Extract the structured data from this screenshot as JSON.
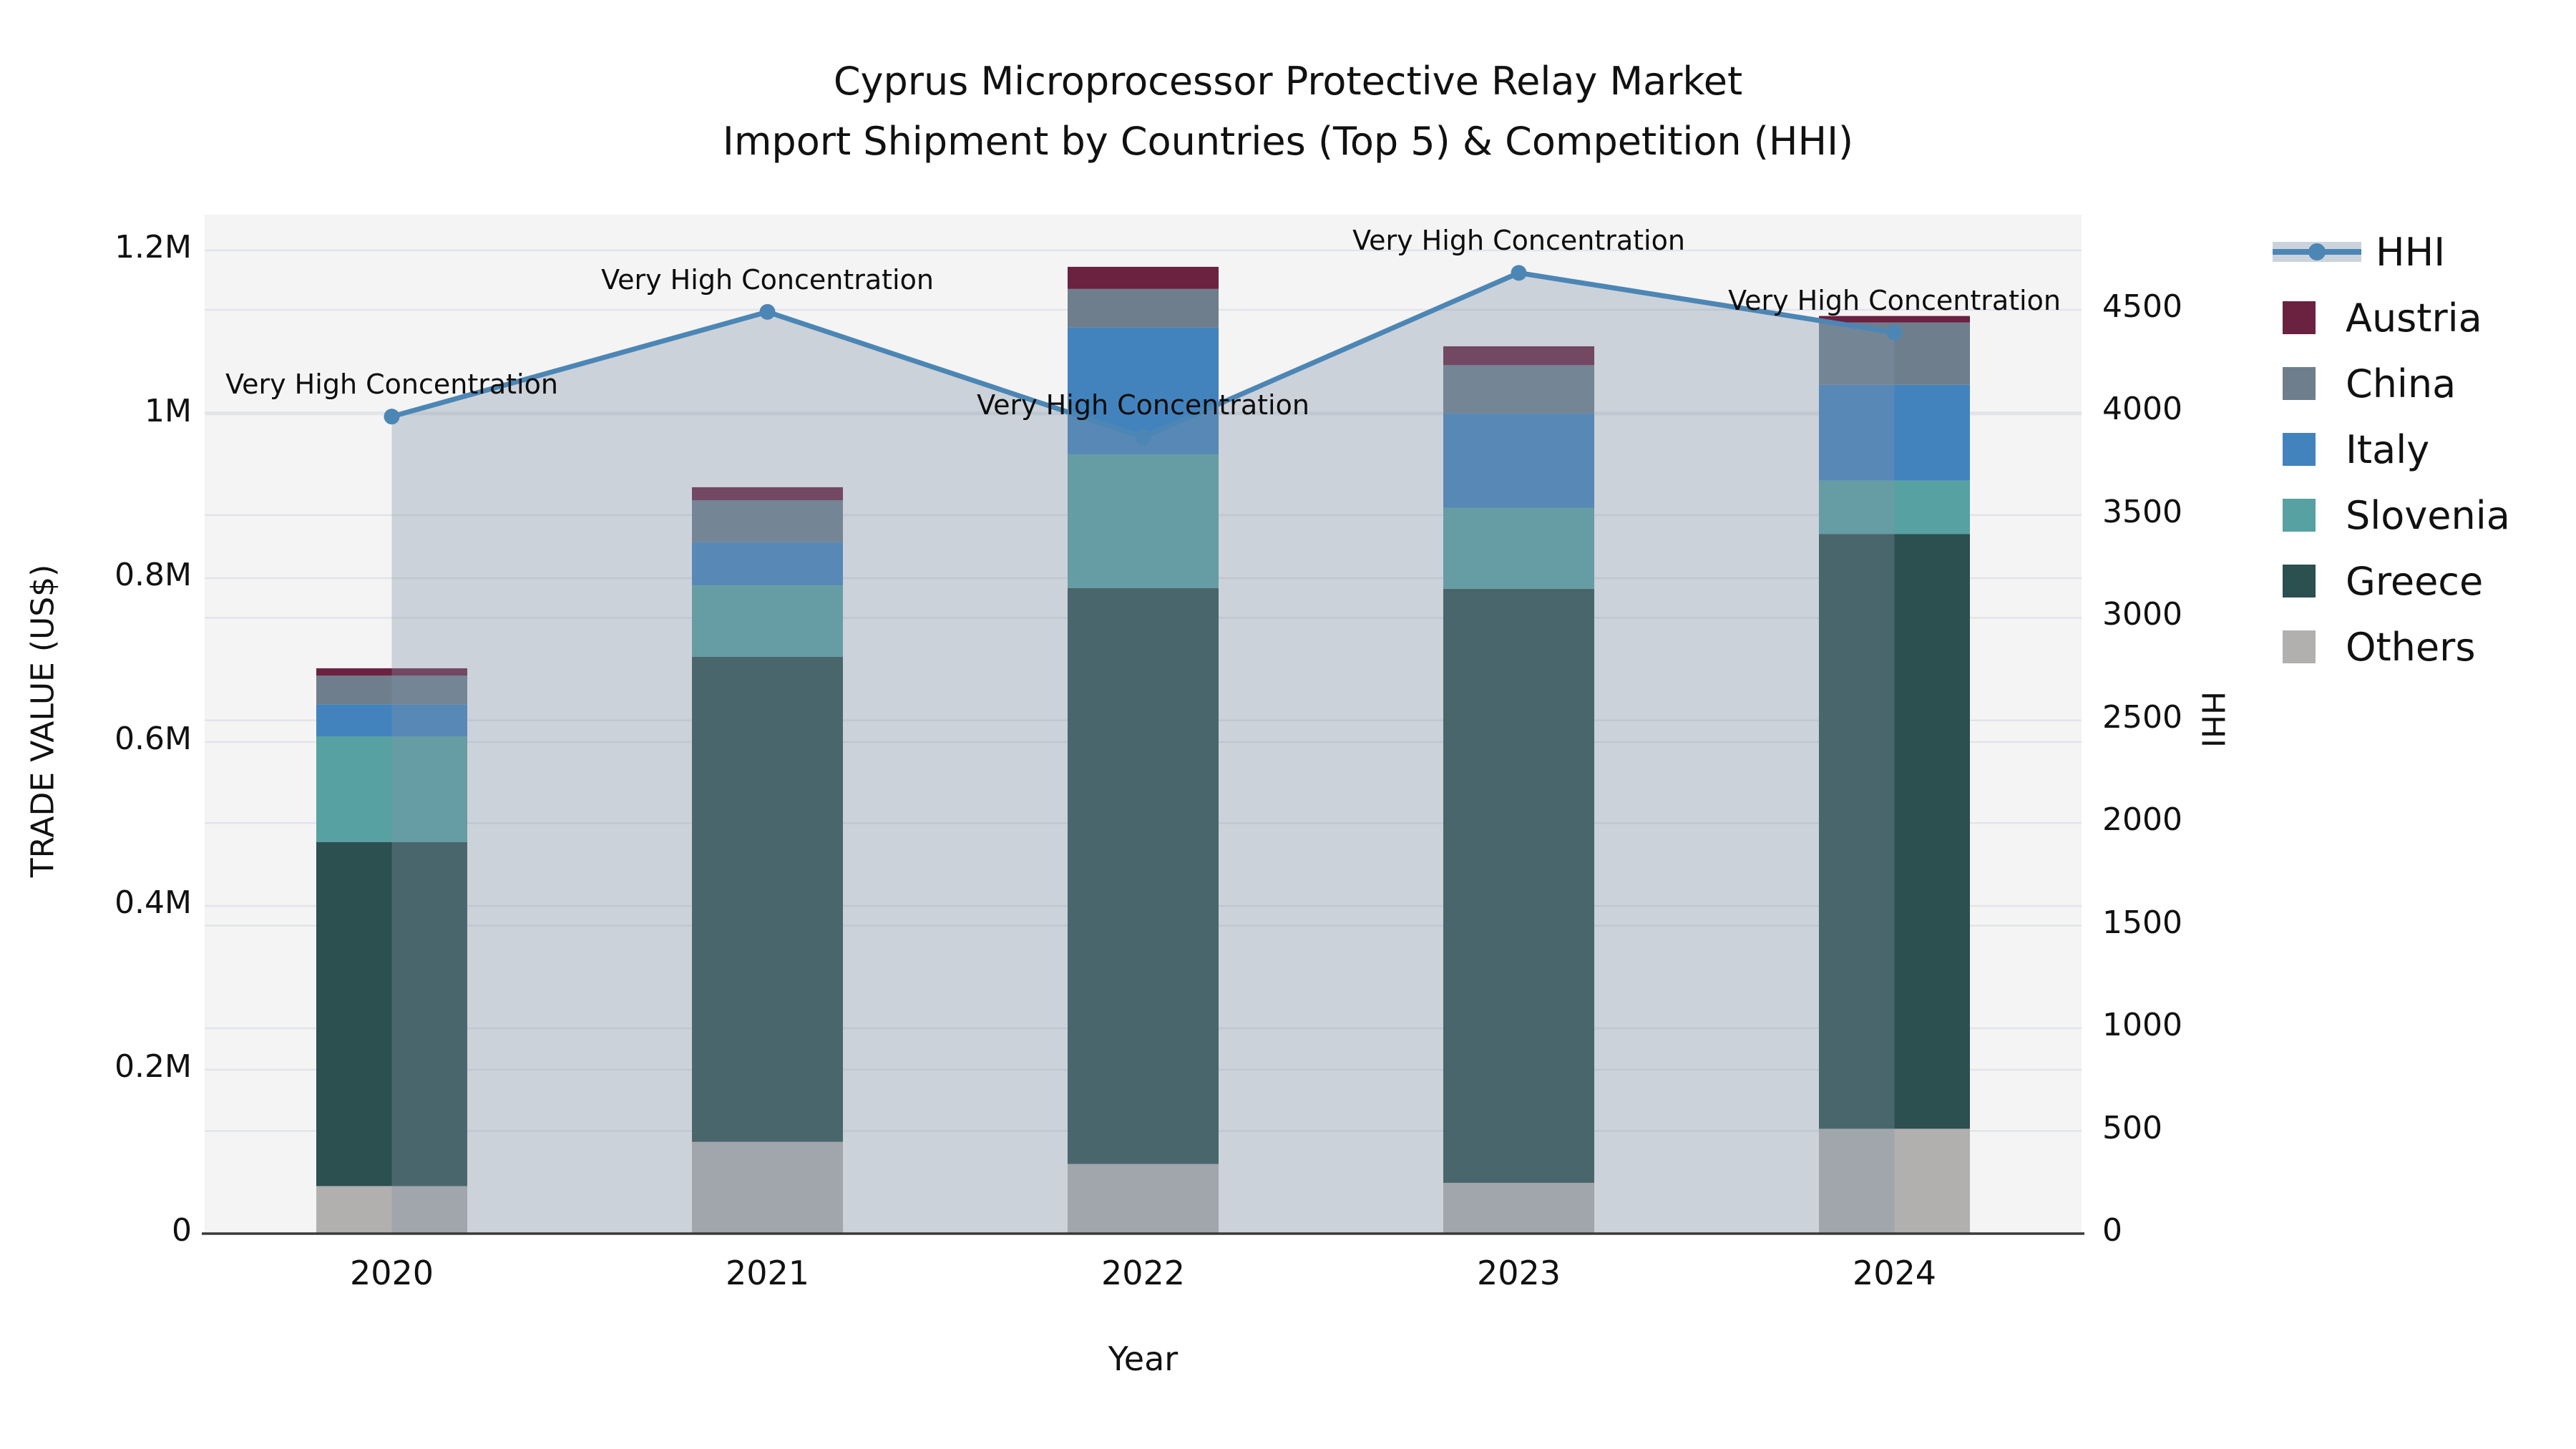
{
  "title": {
    "line1": "Cyprus Microprocessor Protective Relay Market",
    "line2": "Import Shipment by Countries (Top 5) & Competition (HHI)"
  },
  "axes": {
    "x_label": "Year",
    "y_left_label": "TRADE VALUE (US$)",
    "y_right_label": "HHI",
    "y_left_ticks": [
      {
        "value": 0,
        "label": "0"
      },
      {
        "value": 200000,
        "label": "0.2M"
      },
      {
        "value": 400000,
        "label": "0.4M"
      },
      {
        "value": 600000,
        "label": "0.6M"
      },
      {
        "value": 800000,
        "label": "0.8M"
      },
      {
        "value": 1000000,
        "label": "1M"
      },
      {
        "value": 1200000,
        "label": "1.2M"
      }
    ],
    "y_right_ticks": [
      {
        "value": 0,
        "label": "0"
      },
      {
        "value": 500,
        "label": "500"
      },
      {
        "value": 1000,
        "label": "1000"
      },
      {
        "value": 1500,
        "label": "1500"
      },
      {
        "value": 2000,
        "label": "2000"
      },
      {
        "value": 2500,
        "label": "2500"
      },
      {
        "value": 3000,
        "label": "3000"
      },
      {
        "value": 3500,
        "label": "3500"
      },
      {
        "value": 4000,
        "label": "4000"
      },
      {
        "value": 4500,
        "label": "4500"
      }
    ]
  },
  "annotation_text": "Very High Concentration",
  "colors": {
    "background": "#ffffff",
    "plot_background": "#f4f4f4",
    "gridline": "#e1e4e8",
    "axis_line": "#3a3a3a",
    "hhi_line": "#4c86b5",
    "hhi_area_fill": "rgba(130,145,167,0.35)",
    "legend_band": "#cbd3dd",
    "text": "#111111"
  },
  "chart_data": {
    "type": "combo: stacked-bar (left axis) + line-area (right axis)",
    "title": "Cyprus Microprocessor Protective Relay Market — Import Shipment by Countries (Top 5) & Competition (HHI)",
    "categories": [
      "2020",
      "2021",
      "2022",
      "2023",
      "2024"
    ],
    "xlabel": "Year",
    "ylabel_left": "TRADE VALUE (US$)",
    "ylabel_right": "HHI",
    "y_left_range": [
      0,
      1244000
    ],
    "y_right_range": [
      0,
      4964
    ],
    "grid": true,
    "legend_position": "right",
    "bar_series_bottom_to_top": [
      {
        "name": "Others",
        "color": "#b2b0af",
        "values": [
          58000,
          112000,
          85000,
          62000,
          128000
        ]
      },
      {
        "name": "Greece",
        "color": "#2c4f4f",
        "values": [
          420000,
          592000,
          703000,
          725000,
          726000
        ]
      },
      {
        "name": "Slovenia",
        "color": "#58a1a2",
        "values": [
          129000,
          87000,
          163000,
          99000,
          65000
        ]
      },
      {
        "name": "Italy",
        "color": "#4283bd",
        "values": [
          39000,
          53000,
          155000,
          115000,
          117000
        ]
      },
      {
        "name": "China",
        "color": "#6e7e8d",
        "values": [
          35000,
          51000,
          47000,
          59000,
          76000
        ]
      },
      {
        "name": "Austria",
        "color": "#6b2140",
        "values": [
          9000,
          16000,
          27000,
          23000,
          8000
        ]
      }
    ],
    "bar_totals": [
      690000,
      911000,
      1180000,
      1083000,
      1120000
    ],
    "line_series": {
      "name": "HHI",
      "color": "#4c86b5",
      "values": [
        3980,
        4490,
        3880,
        4680,
        4390
      ],
      "point_annotations": [
        "Very High Concentration",
        "Very High Concentration",
        "Very High Concentration",
        "Very High Concentration",
        "Very High Concentration"
      ],
      "area_fill": "rgba(130,145,167,0.35)"
    },
    "legend_order_top_to_bottom": [
      "HHI",
      "Austria",
      "China",
      "Italy",
      "Slovenia",
      "Greece",
      "Others"
    ]
  }
}
